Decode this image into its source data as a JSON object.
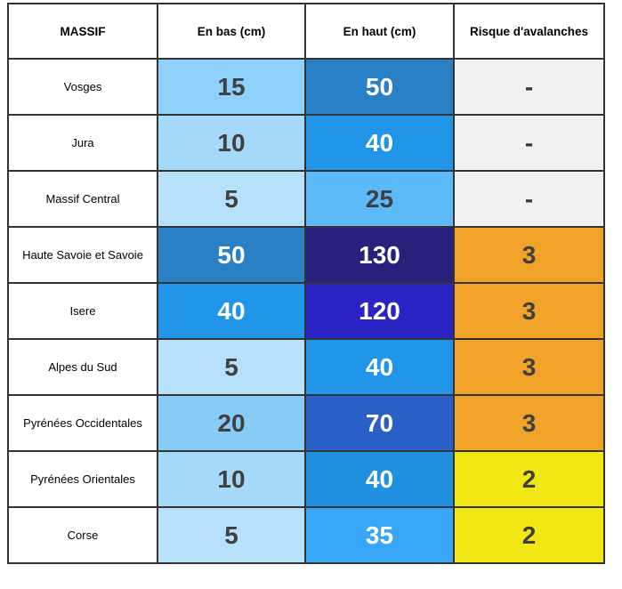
{
  "chart_data": {
    "type": "table",
    "columns": [
      "MASSIF",
      "En bas (cm)",
      "En haut (cm)",
      "Risque d'avalanches"
    ],
    "rows": [
      {
        "massif": "Vosges",
        "en_bas": 15,
        "en_haut": 50,
        "risque": "-"
      },
      {
        "massif": "Jura",
        "en_bas": 10,
        "en_haut": 40,
        "risque": "-"
      },
      {
        "massif": "Massif Central",
        "en_bas": 5,
        "en_haut": 25,
        "risque": "-"
      },
      {
        "massif": "Haute Savoie et Savoie",
        "en_bas": 50,
        "en_haut": 130,
        "risque": 3
      },
      {
        "massif": "Isere",
        "en_bas": 40,
        "en_haut": 120,
        "risque": 3
      },
      {
        "massif": "Alpes du Sud",
        "en_bas": 5,
        "en_haut": 40,
        "risque": 3
      },
      {
        "massif": "Pyrénées Occidentales",
        "en_bas": 20,
        "en_haut": 70,
        "risque": 3
      },
      {
        "massif": "Pyrénées Orientales",
        "en_bas": 10,
        "en_haut": 40,
        "risque": 2
      },
      {
        "massif": "Corse",
        "en_bas": 5,
        "en_haut": 35,
        "risque": 2
      }
    ]
  },
  "palette": {
    "border": "#333333",
    "dark_text": "#404040",
    "white_text": "#ffffff",
    "no_risk_gray": "#f1f1f0",
    "risk3_orange": "#f0a328",
    "risk2_yellow": "#f0e714"
  },
  "table": {
    "headers": {
      "massif": "MASSIF",
      "en_bas": "En bas (cm)",
      "en_haut": "En haut (cm)",
      "risque": "Risque d'avalanches"
    },
    "rows": [
      {
        "massif": "Vosges",
        "en_bas": {
          "value": "15",
          "bg": "#8fd0fa",
          "fg": "#404040"
        },
        "en_haut": {
          "value": "50",
          "bg": "#2a80c4",
          "fg": "#ffffff"
        },
        "risque": {
          "value": "-",
          "bg": "#f1f1f0",
          "fg": "#3b3b3b"
        }
      },
      {
        "massif": "Jura",
        "en_bas": {
          "value": "10",
          "bg": "#a4d9fa",
          "fg": "#404040"
        },
        "en_haut": {
          "value": "40",
          "bg": "#2196e8",
          "fg": "#ffffff"
        },
        "risque": {
          "value": "-",
          "bg": "#f1f1f0",
          "fg": "#3b3b3b"
        }
      },
      {
        "massif": "Massif Central",
        "en_bas": {
          "value": "5",
          "bg": "#b7e0fa",
          "fg": "#404040"
        },
        "en_haut": {
          "value": "25",
          "bg": "#5cbaf8",
          "fg": "#404040"
        },
        "risque": {
          "value": "-",
          "bg": "#f1f1f0",
          "fg": "#3b3b3b"
        }
      },
      {
        "massif": "Haute Savoie et Savoie",
        "en_bas": {
          "value": "50",
          "bg": "#2a80c4",
          "fg": "#ffffff"
        },
        "en_haut": {
          "value": "130",
          "bg": "#28217c",
          "fg": "#ffffff"
        },
        "risque": {
          "value": "3",
          "bg": "#f0a328",
          "fg": "#404040"
        }
      },
      {
        "massif": "Isere",
        "en_bas": {
          "value": "40",
          "bg": "#2196e8",
          "fg": "#ffffff"
        },
        "en_haut": {
          "value": "120",
          "bg": "#2b23c4",
          "fg": "#ffffff"
        },
        "risque": {
          "value": "3",
          "bg": "#f0a328",
          "fg": "#404040"
        }
      },
      {
        "massif": "Alpes du Sud",
        "en_bas": {
          "value": "5",
          "bg": "#b7e0fa",
          "fg": "#404040"
        },
        "en_haut": {
          "value": "40",
          "bg": "#2196e8",
          "fg": "#ffffff"
        },
        "risque": {
          "value": "3",
          "bg": "#f0a328",
          "fg": "#404040"
        }
      },
      {
        "massif": "Pyrénées Occidentales",
        "en_bas": {
          "value": "20",
          "bg": "#87ccf6",
          "fg": "#404040"
        },
        "en_haut": {
          "value": "70",
          "bg": "#2a5fc8",
          "fg": "#ffffff"
        },
        "risque": {
          "value": "3",
          "bg": "#f0a328",
          "fg": "#404040"
        }
      },
      {
        "massif": "Pyrénées Orientales",
        "en_bas": {
          "value": "10",
          "bg": "#a4d9fa",
          "fg": "#404040"
        },
        "en_haut": {
          "value": "40",
          "bg": "#2090e0",
          "fg": "#ffffff"
        },
        "risque": {
          "value": "2",
          "bg": "#f0e714",
          "fg": "#404040"
        }
      },
      {
        "massif": "Corse",
        "en_bas": {
          "value": "5",
          "bg": "#b7e0fa",
          "fg": "#404040"
        },
        "en_haut": {
          "value": "35",
          "bg": "#38a6f6",
          "fg": "#ffffff"
        },
        "risque": {
          "value": "2",
          "bg": "#f0e714",
          "fg": "#404040"
        }
      }
    ]
  }
}
